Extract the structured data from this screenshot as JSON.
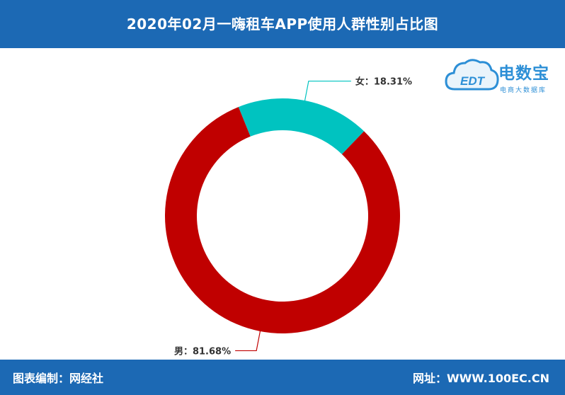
{
  "title": "2020年02月一嗨租车APP使用人群性别占比图",
  "footer": {
    "left": "图表编制：网经社",
    "right": "网址：WWW.100EC.CN"
  },
  "logo": {
    "brand": "电数宝",
    "sub": "电商大数据库",
    "mark": "EDT"
  },
  "colors": {
    "header": "#1c69b4",
    "female": "#00c3c0",
    "male": "#c00000"
  },
  "chart_data": {
    "type": "pie",
    "donut": true,
    "slices": [
      {
        "name": "女",
        "value": 18.31,
        "label": "女：18.31%",
        "color": "#00c3c0"
      },
      {
        "name": "男",
        "value": 81.68,
        "label": "男：81.68%",
        "color": "#c00000"
      }
    ]
  }
}
